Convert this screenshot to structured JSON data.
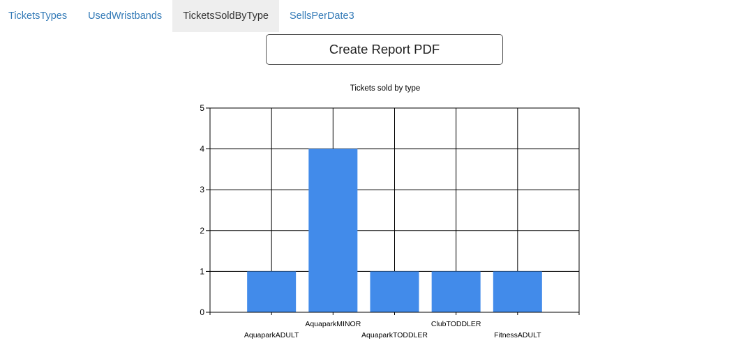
{
  "nav": {
    "tabs": [
      {
        "label": "TicketsTypes",
        "active": false
      },
      {
        "label": "UsedWristbands",
        "active": false
      },
      {
        "label": "TicketsSoldByType",
        "active": true
      },
      {
        "label": "SellsPerDate3",
        "active": false
      }
    ]
  },
  "actions": {
    "create_report_label": "Create Report PDF"
  },
  "colors": {
    "bar": "#428bea",
    "grid": "#000000",
    "link": "#337ab7",
    "active_tab_bg": "#eeeeee"
  },
  "chart_data": {
    "type": "bar",
    "title": "Tickets sold by type",
    "xlabel": "",
    "ylabel": "",
    "categories": [
      "AquaparkADULT",
      "AquaparkMINOR",
      "AquaparkTODDLER",
      "ClubTODDLER",
      "FitnessADULT"
    ],
    "values": [
      1,
      4,
      1,
      1,
      1
    ],
    "ylim": [
      0,
      5
    ],
    "yticks": [
      0,
      1,
      2,
      3,
      4,
      5
    ],
    "grid": true,
    "legend": "none"
  }
}
